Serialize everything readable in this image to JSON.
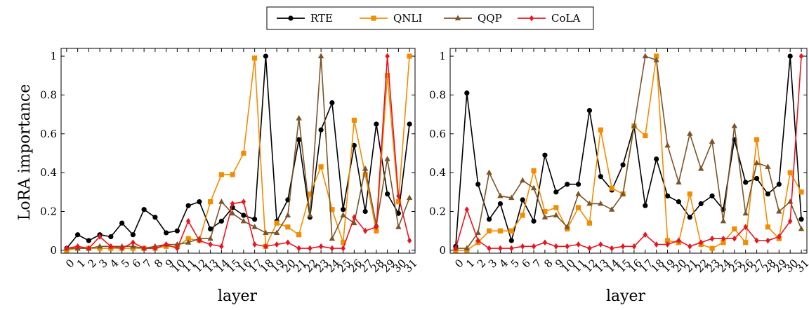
{
  "chart_data": [
    {
      "type": "line",
      "xlabel": "layer",
      "ylabel": "LoRA importance",
      "ylim": [
        0,
        1
      ],
      "yticks": [
        "0",
        "0.2",
        "0.4",
        "0.6",
        "0.8",
        "1"
      ],
      "x": [
        0,
        1,
        2,
        3,
        4,
        5,
        6,
        7,
        8,
        9,
        10,
        11,
        12,
        13,
        14,
        15,
        16,
        17,
        18,
        19,
        20,
        21,
        22,
        23,
        24,
        25,
        26,
        27,
        28,
        29,
        30,
        31
      ],
      "series": [
        {
          "name": "RTE",
          "color": "#000000",
          "marker": "circle",
          "values": [
            0.01,
            0.08,
            0.05,
            0.08,
            0.07,
            0.14,
            0.08,
            0.21,
            0.17,
            0.09,
            0.1,
            0.23,
            0.25,
            0.11,
            0.15,
            0.22,
            0.18,
            0.16,
            1.0,
            0.15,
            0.26,
            0.57,
            0.17,
            0.62,
            0.76,
            0.21,
            0.54,
            0.2,
            0.65,
            0.29,
            0.19,
            0.65
          ]
        },
        {
          "name": "QNLI",
          "color": "#f28c00",
          "marker": "square",
          "values": [
            0.0,
            0.01,
            0.01,
            0.01,
            0.01,
            0.01,
            0.01,
            0.01,
            0.01,
            0.02,
            0.02,
            0.06,
            0.05,
            0.25,
            0.39,
            0.39,
            0.5,
            0.99,
            0.02,
            0.14,
            0.12,
            0.08,
            0.29,
            0.43,
            0.21,
            0.04,
            0.67,
            0.39,
            0.1,
            0.9,
            0.25,
            1.0
          ]
        },
        {
          "name": "QQP",
          "color": "#7b5427",
          "marker": "triangle",
          "values": [
            0.01,
            0.01,
            0.01,
            0.02,
            0.02,
            0.02,
            0.02,
            0.01,
            0.02,
            0.03,
            0.03,
            0.04,
            0.06,
            0.06,
            0.25,
            0.19,
            0.15,
            0.12,
            0.09,
            0.09,
            0.18,
            0.68,
            0.18,
            1.0,
            0.06,
            0.18,
            0.14,
            0.42,
            0.13,
            0.47,
            0.12,
            0.27
          ]
        },
        {
          "name": "CoLA",
          "color": "#e8141e",
          "marker": "diamond",
          "values": [
            0.01,
            0.02,
            0.01,
            0.07,
            0.02,
            0.01,
            0.04,
            0.01,
            0.01,
            0.03,
            0.01,
            0.15,
            0.05,
            0.03,
            0.02,
            0.24,
            0.25,
            0.03,
            0.02,
            0.03,
            0.04,
            0.01,
            0.01,
            0.02,
            0.01,
            0.01,
            0.17,
            0.1,
            0.12,
            1.0,
            0.28,
            0.05
          ]
        }
      ]
    },
    {
      "type": "line",
      "xlabel": "layer",
      "ylabel": "",
      "ylim": [
        0,
        1
      ],
      "yticks": [
        "0",
        "0.2",
        "0.4",
        "0.6",
        "0.8",
        "1"
      ],
      "x": [
        0,
        1,
        2,
        3,
        4,
        5,
        6,
        7,
        8,
        9,
        10,
        11,
        12,
        13,
        14,
        15,
        16,
        17,
        18,
        19,
        20,
        21,
        22,
        23,
        24,
        25,
        26,
        27,
        28,
        29,
        30,
        31
      ],
      "series": [
        {
          "name": "RTE",
          "color": "#000000",
          "marker": "circle",
          "values": [
            0.02,
            0.81,
            0.34,
            0.16,
            0.24,
            0.05,
            0.26,
            0.15,
            0.49,
            0.3,
            0.34,
            0.34,
            0.72,
            0.38,
            0.31,
            0.44,
            0.64,
            0.23,
            0.47,
            0.28,
            0.25,
            0.17,
            0.24,
            0.28,
            0.21,
            0.57,
            0.35,
            0.37,
            0.29,
            0.34,
            1.0,
            0.16
          ]
        },
        {
          "name": "QNLI",
          "color": "#f28c00",
          "marker": "square",
          "values": [
            0.0,
            0.0,
            0.04,
            0.1,
            0.1,
            0.1,
            0.18,
            0.41,
            0.2,
            0.22,
            0.11,
            0.22,
            0.14,
            0.62,
            0.32,
            0.29,
            0.64,
            0.59,
            1.0,
            0.05,
            0.04,
            0.29,
            0.03,
            0.01,
            0.04,
            0.11,
            0.04,
            0.57,
            0.12,
            0.06,
            0.4,
            0.3
          ]
        },
        {
          "name": "QQP",
          "color": "#7b5427",
          "marker": "triangle",
          "values": [
            0.01,
            0.01,
            0.09,
            0.4,
            0.28,
            0.27,
            0.36,
            0.32,
            0.17,
            0.18,
            0.12,
            0.29,
            0.24,
            0.24,
            0.21,
            0.29,
            0.64,
            1.0,
            0.98,
            0.54,
            0.35,
            0.6,
            0.42,
            0.56,
            0.15,
            0.64,
            0.19,
            0.45,
            0.43,
            0.2,
            0.25,
            0.11
          ]
        },
        {
          "name": "CoLA",
          "color": "#e8141e",
          "marker": "diamond",
          "values": [
            0.01,
            0.21,
            0.05,
            0.01,
            0.01,
            0.01,
            0.02,
            0.02,
            0.04,
            0.02,
            0.02,
            0.03,
            0.01,
            0.03,
            0.01,
            0.02,
            0.02,
            0.08,
            0.03,
            0.03,
            0.05,
            0.02,
            0.04,
            0.06,
            0.06,
            0.06,
            0.12,
            0.05,
            0.05,
            0.07,
            0.15,
            1.0
          ]
        }
      ]
    }
  ],
  "legend": {
    "placement": "top-center",
    "entries": [
      "RTE",
      "QNLI",
      "QQP",
      "CoLA"
    ]
  }
}
